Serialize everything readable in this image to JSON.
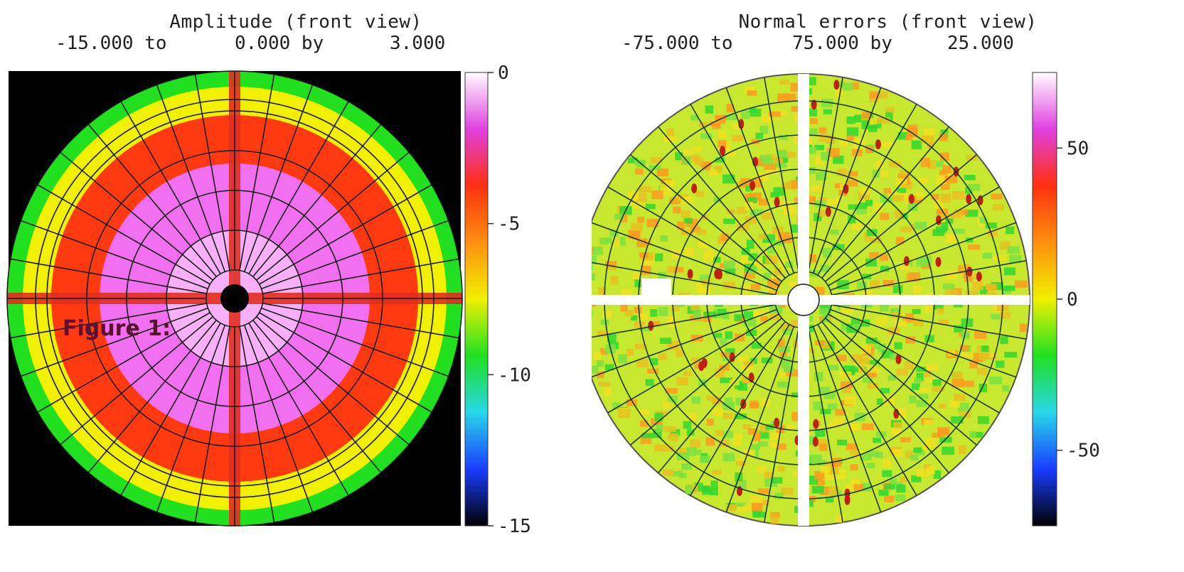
{
  "chart_data": [
    {
      "type": "heatmap",
      "title": "Amplitude (front view)",
      "range_text": {
        "min": "-15.000 to",
        "max": "0.000 by",
        "step": "3.000"
      },
      "scale": {
        "min": -15,
        "max": 0,
        "step": 3
      },
      "colorbar_ticks": [
        "0",
        "-5",
        "-10",
        "-15"
      ],
      "colorbar_tick_values": [
        0,
        -5,
        -10,
        -15
      ],
      "annotation": "Figure 1:",
      "background": "#000000",
      "palette": [
        "#000000",
        "#1a3cff",
        "#28d8e8",
        "#20e020",
        "#f0f000",
        "#ff9010",
        "#ff3010",
        "#e040e0",
        "#ffffff"
      ],
      "regions": [
        {
          "name": "outer-ring",
          "color": "#f0f000"
        },
        {
          "name": "mid-ring",
          "color": "#ff3a10"
        },
        {
          "name": "core",
          "color": "#f070f0"
        },
        {
          "name": "center",
          "color": "#000000"
        }
      ],
      "grid": true
    },
    {
      "type": "heatmap",
      "title": "Normal errors (front view)",
      "range_text": {
        "min": "-75.000 to",
        "max": "75.000 by",
        "step": "25.000"
      },
      "scale": {
        "min": -75,
        "max": 75,
        "step": 25
      },
      "colorbar_ticks": [
        "50",
        "0",
        "-50"
      ],
      "colorbar_tick_values": [
        50,
        0,
        -50
      ],
      "background": "#ffffff",
      "palette": [
        "#000000",
        "#1a3cff",
        "#28d8e8",
        "#20e020",
        "#f0f000",
        "#ff9010",
        "#ff3010",
        "#e040e0",
        "#ffffff"
      ],
      "grid": true
    }
  ]
}
